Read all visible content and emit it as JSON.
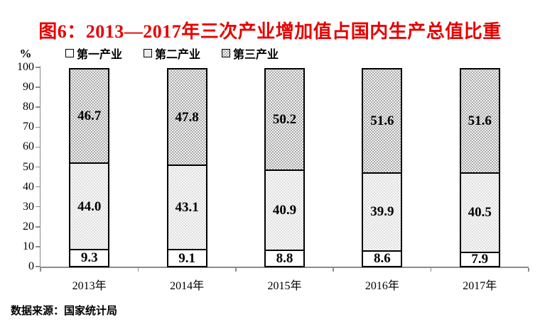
{
  "title": "图6：2013—2017年三次产业增加值占国内生产总值比重",
  "source": "数据来源：国家统计局",
  "colors": {
    "title": "#e60000",
    "text": "#000000",
    "axis": "#8c8c8c",
    "bar_border": "#000000",
    "primary_fill": "#ffffff",
    "secondary_fill": "#dedede",
    "secondary_dot": "#ffffff",
    "tertiary_fill": "#acacac",
    "tertiary_dot": "#ffffff"
  },
  "chart_data": {
    "type": "bar",
    "stacked": true,
    "title": "图6：2013—2017年三次产业增加值占国内生产总值比重",
    "ylabel": "%",
    "ylim": [
      0,
      100
    ],
    "ytick_step": 10,
    "grid": false,
    "legend_position": "top",
    "categories": [
      "2013年",
      "2014年",
      "2015年",
      "2016年",
      "2017年"
    ],
    "series": [
      {
        "name": "第一产业",
        "key": "primary",
        "values": [
          9.3,
          9.1,
          8.8,
          8.6,
          7.9
        ]
      },
      {
        "name": "第二产业",
        "key": "secondary",
        "values": [
          44.0,
          43.1,
          40.9,
          39.9,
          40.5
        ]
      },
      {
        "name": "第三产业",
        "key": "tertiary",
        "values": [
          46.7,
          47.8,
          50.2,
          51.6,
          51.6
        ]
      }
    ]
  }
}
